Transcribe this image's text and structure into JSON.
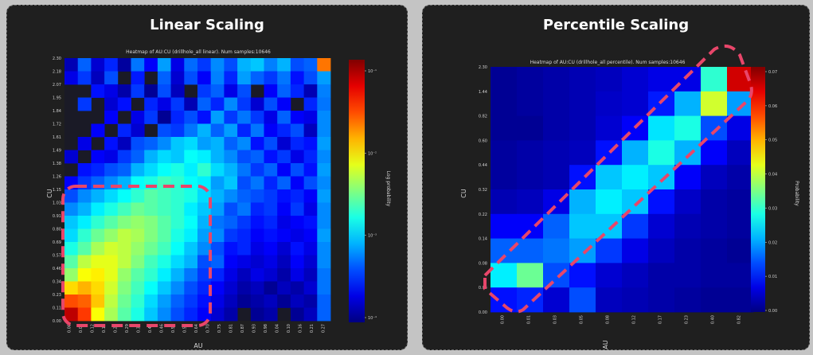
{
  "panels": [
    {
      "title": "Linear Scaling"
    },
    {
      "title": "Percentile Scaling"
    }
  ],
  "chart_data": [
    {
      "type": "heatmap",
      "title": "Heatmap of AU:CU (drillhole_all linear). Num samples:10646",
      "xlabel": "AU",
      "ylabel": "CU",
      "colorbar_label": "Log probability",
      "colorbar_ticks": [
        "10⁻¹",
        "10⁻²",
        "10⁻³",
        "10⁻⁴"
      ],
      "colorscale": "jet",
      "x_ticks": [
        "0.00",
        "0.06",
        "0.12",
        "0.17",
        "0.23",
        "0.29",
        "0.35",
        "0.41",
        "0.46",
        "0.52",
        "0.58",
        "0.64",
        "0.70",
        "0.75",
        "0.81",
        "0.87",
        "0.93",
        "0.98",
        "0.04",
        "0.10",
        "0.16",
        "0.21",
        "0.27"
      ],
      "y_ticks": [
        "0.00",
        "0.11",
        "0.23",
        "0.34",
        "0.46",
        "0.57",
        "0.69",
        "0.80",
        "0.91",
        "1.03",
        "1.15",
        "1.26",
        "1.38",
        "1.49",
        "1.61",
        "1.72",
        "1.84",
        "1.95",
        "2.07",
        "2.18",
        "2.30"
      ],
      "grid_rows": 20,
      "grid_cols": 20,
      "values": [
        [
          0.05,
          0.22,
          0.08,
          0.16,
          0.03,
          0.24,
          0.12,
          0.28,
          0.1,
          0.23,
          0.18,
          0.26,
          0.2,
          0.3,
          0.32,
          0.25,
          0.3,
          0.2,
          0.22,
          0.76
        ],
        [
          0.1,
          0.18,
          0.06,
          0.2,
          0,
          0.15,
          0,
          0.22,
          0.08,
          0.2,
          0.12,
          0.25,
          0.16,
          0.28,
          0.22,
          0.18,
          0.24,
          0.14,
          0.2,
          0.28
        ],
        [
          0,
          0,
          0.14,
          0.1,
          0.04,
          0.18,
          0.02,
          0.2,
          0.06,
          0,
          0.18,
          0.22,
          0.1,
          0.2,
          0,
          0.12,
          0.22,
          0.16,
          0.05,
          0.25
        ],
        [
          0,
          0.18,
          0,
          0.08,
          0.14,
          0,
          0.16,
          0.1,
          0.18,
          0.05,
          0.22,
          0.16,
          0.26,
          0.18,
          0.08,
          0.2,
          0.12,
          0,
          0.16,
          0.24
        ],
        [
          0,
          0,
          0,
          0.12,
          0,
          0.1,
          0.18,
          0.02,
          0.16,
          0.2,
          0.14,
          0.28,
          0.18,
          0.24,
          0.18,
          0.1,
          0.22,
          0.12,
          0.1,
          0.26
        ],
        [
          0,
          0,
          0.12,
          0,
          0.16,
          0.08,
          0,
          0.2,
          0.18,
          0.24,
          0.3,
          0.22,
          0.28,
          0.16,
          0.24,
          0.12,
          0.16,
          0.2,
          0.06,
          0.26
        ],
        [
          0,
          0.1,
          0,
          0.14,
          0.06,
          0.2,
          0.22,
          0.26,
          0.32,
          0.34,
          0.28,
          0.3,
          0.22,
          0.26,
          0.14,
          0.2,
          0.08,
          0.16,
          0.14,
          0.28
        ],
        [
          0.08,
          0,
          0.12,
          0.1,
          0.18,
          0.22,
          0.3,
          0.34,
          0.32,
          0.38,
          0.36,
          0.3,
          0.26,
          0.2,
          0.22,
          0.14,
          0.18,
          0.1,
          0.16,
          0.26
        ],
        [
          0,
          0.14,
          0.16,
          0.2,
          0.22,
          0.3,
          0.34,
          0.38,
          0.4,
          0.36,
          0.42,
          0.34,
          0.3,
          0.24,
          0.18,
          0.22,
          0.12,
          0.2,
          0.14,
          0.28
        ],
        [
          0.12,
          0.18,
          0.22,
          0.26,
          0.3,
          0.38,
          0.4,
          0.44,
          0.42,
          0.38,
          0.36,
          0.28,
          0.32,
          0.2,
          0.24,
          0.16,
          0.22,
          0.12,
          0.2,
          0.26
        ],
        [
          0.2,
          0.26,
          0.3,
          0.34,
          0.38,
          0.42,
          0.46,
          0.44,
          0.42,
          0.4,
          0.34,
          0.3,
          0.26,
          0.22,
          0.2,
          0.18,
          0.14,
          0.16,
          0.12,
          0.28
        ],
        [
          0.26,
          0.3,
          0.36,
          0.4,
          0.44,
          0.48,
          0.46,
          0.44,
          0.42,
          0.36,
          0.32,
          0.28,
          0.2,
          0.24,
          0.16,
          0.18,
          0.12,
          0.18,
          0.1,
          0.26
        ],
        [
          0.32,
          0.36,
          0.42,
          0.46,
          0.5,
          0.52,
          0.5,
          0.46,
          0.42,
          0.38,
          0.3,
          0.24,
          0.22,
          0.18,
          0.14,
          0.16,
          0.1,
          0.12,
          0.14,
          0.26
        ],
        [
          0.34,
          0.42,
          0.48,
          0.52,
          0.56,
          0.54,
          0.5,
          0.46,
          0.4,
          0.36,
          0.28,
          0.26,
          0.18,
          0.16,
          0.12,
          0.14,
          0.12,
          0.1,
          0.12,
          0.28
        ],
        [
          0.4,
          0.46,
          0.54,
          0.58,
          0.56,
          0.52,
          0.48,
          0.44,
          0.38,
          0.32,
          0.26,
          0.2,
          0.14,
          0.16,
          0.1,
          0.12,
          0.08,
          0.14,
          0.1,
          0.26
        ],
        [
          0.46,
          0.56,
          0.6,
          0.6,
          0.56,
          0.5,
          0.44,
          0.4,
          0.34,
          0.3,
          0.2,
          0.22,
          0.12,
          0.1,
          0.08,
          0.1,
          0.06,
          0.12,
          0.08,
          0.26
        ],
        [
          0.52,
          0.62,
          0.64,
          0.6,
          0.52,
          0.46,
          0.42,
          0.36,
          0.3,
          0.24,
          0.18,
          0.16,
          0.1,
          0.06,
          0.1,
          0.08,
          0.04,
          0.1,
          0.06,
          0.24
        ],
        [
          0.66,
          0.7,
          0.66,
          0.58,
          0.5,
          0.44,
          0.38,
          0.32,
          0.26,
          0.2,
          0.16,
          0.12,
          0.08,
          0.04,
          0.06,
          0.02,
          0.06,
          0.04,
          0.08,
          0.24
        ],
        [
          0.8,
          0.78,
          0.68,
          0.56,
          0.48,
          0.42,
          0.34,
          0.28,
          0.22,
          0.18,
          0.14,
          0.1,
          0.06,
          0.02,
          0.04,
          0.06,
          0.02,
          0.06,
          0.04,
          0.22
        ],
        [
          0.94,
          0.82,
          0.62,
          0.54,
          0.46,
          0.4,
          0.32,
          0.26,
          0.2,
          0.16,
          0.12,
          0.08,
          0.04,
          0,
          0.02,
          0.04,
          0,
          0.02,
          0.06,
          0.22
        ]
      ]
    },
    {
      "type": "heatmap",
      "title": "Heatmap of AU:CU (drillhole_all percentile). Num samples:10646",
      "xlabel": "AU",
      "ylabel": "CU",
      "colorbar_label": "Probability",
      "colorbar_ticks": [
        "0.07",
        "0.06",
        "0.05",
        "0.04",
        "0.03",
        "0.02",
        "0.01",
        "0.00"
      ],
      "colorscale": "jet",
      "x_ticks": [
        "0.00",
        "0.01",
        "0.03",
        "0.05",
        "0.08",
        "0.12",
        "0.17",
        "0.23",
        "0.40",
        "0.82"
      ],
      "y_ticks": [
        "0.00",
        "0.04",
        "0.08",
        "0.14",
        "0.22",
        "0.32",
        "0.44",
        "0.60",
        "0.82",
        "1.44",
        "2.30"
      ],
      "grid_rows": 10,
      "grid_cols": 10,
      "values": [
        [
          0.02,
          0.03,
          0.04,
          0.05,
          0.06,
          0.08,
          0.1,
          0.1,
          0.42,
          0.92
        ],
        [
          0.02,
          0.03,
          0.04,
          0.05,
          0.07,
          0.08,
          0.15,
          0.3,
          0.58,
          0.28
        ],
        [
          0.02,
          0.02,
          0.04,
          0.05,
          0.08,
          0.12,
          0.35,
          0.4,
          0.2,
          0.1
        ],
        [
          0.03,
          0.04,
          0.05,
          0.06,
          0.14,
          0.3,
          0.4,
          0.3,
          0.12,
          0.06
        ],
        [
          0.03,
          0.04,
          0.05,
          0.14,
          0.32,
          0.36,
          0.32,
          0.12,
          0.06,
          0.04
        ],
        [
          0.05,
          0.06,
          0.1,
          0.3,
          0.36,
          0.32,
          0.14,
          0.07,
          0.04,
          0.03
        ],
        [
          0.12,
          0.12,
          0.22,
          0.32,
          0.32,
          0.18,
          0.08,
          0.05,
          0.04,
          0.03
        ],
        [
          0.22,
          0.22,
          0.24,
          0.28,
          0.18,
          0.1,
          0.06,
          0.04,
          0.03,
          0.02
        ],
        [
          0.36,
          0.48,
          0.2,
          0.14,
          0.08,
          0.06,
          0.04,
          0.04,
          0.03,
          0.03
        ],
        [
          0.14,
          0.16,
          0.08,
          0.2,
          0.06,
          0.05,
          0.04,
          0.03,
          0.02,
          0.02
        ]
      ]
    }
  ]
}
